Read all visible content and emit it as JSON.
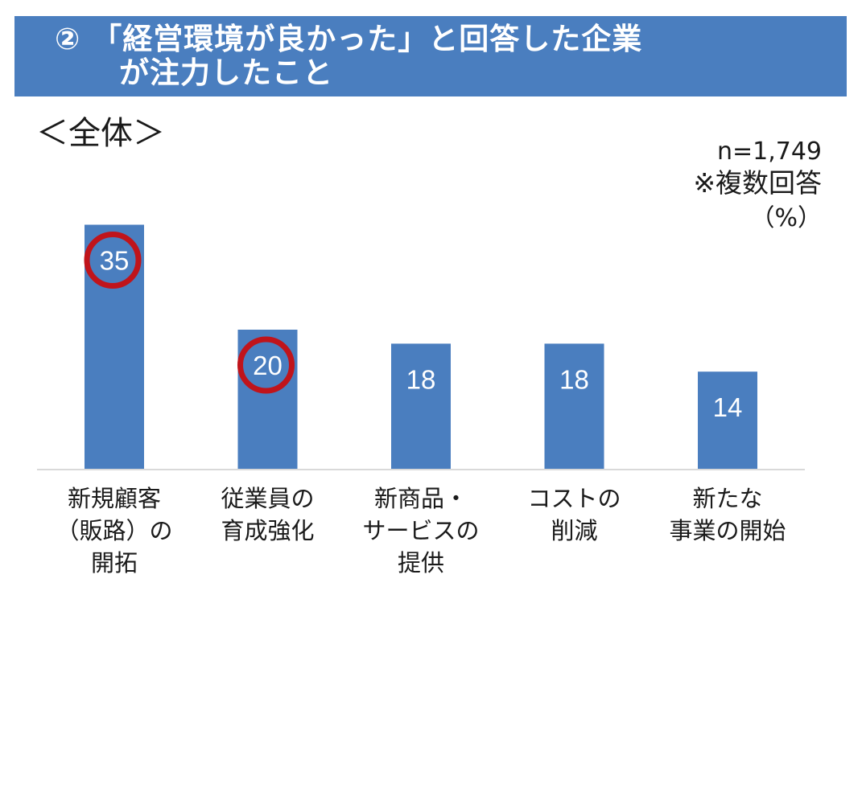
{
  "title": {
    "line1": "② 「経営環境が良かった」と回答した企業",
    "line2": "が注力したこと"
  },
  "section_label": "＜全体＞",
  "sample_size": "n=1,749",
  "multiple_answer_note": "※複数回答",
  "unit_label": "（%）",
  "chart_data": {
    "type": "bar",
    "categories": [
      [
        "新規顧客",
        "（販路）の",
        "開拓"
      ],
      [
        "従業員の",
        "育成強化"
      ],
      [
        "新商品・",
        "サービスの",
        "提供"
      ],
      [
        "コストの",
        "削減"
      ],
      [
        "新たな",
        "事業の開始"
      ]
    ],
    "values": [
      35,
      20,
      18,
      18,
      14
    ],
    "highlighted_values": [
      35,
      20
    ],
    "title": "",
    "xlabel": "",
    "ylabel": "",
    "ylim": [
      0,
      40
    ],
    "grid": false,
    "bar_color": "#4a7ebf",
    "highlight_color": "#c0141b"
  }
}
